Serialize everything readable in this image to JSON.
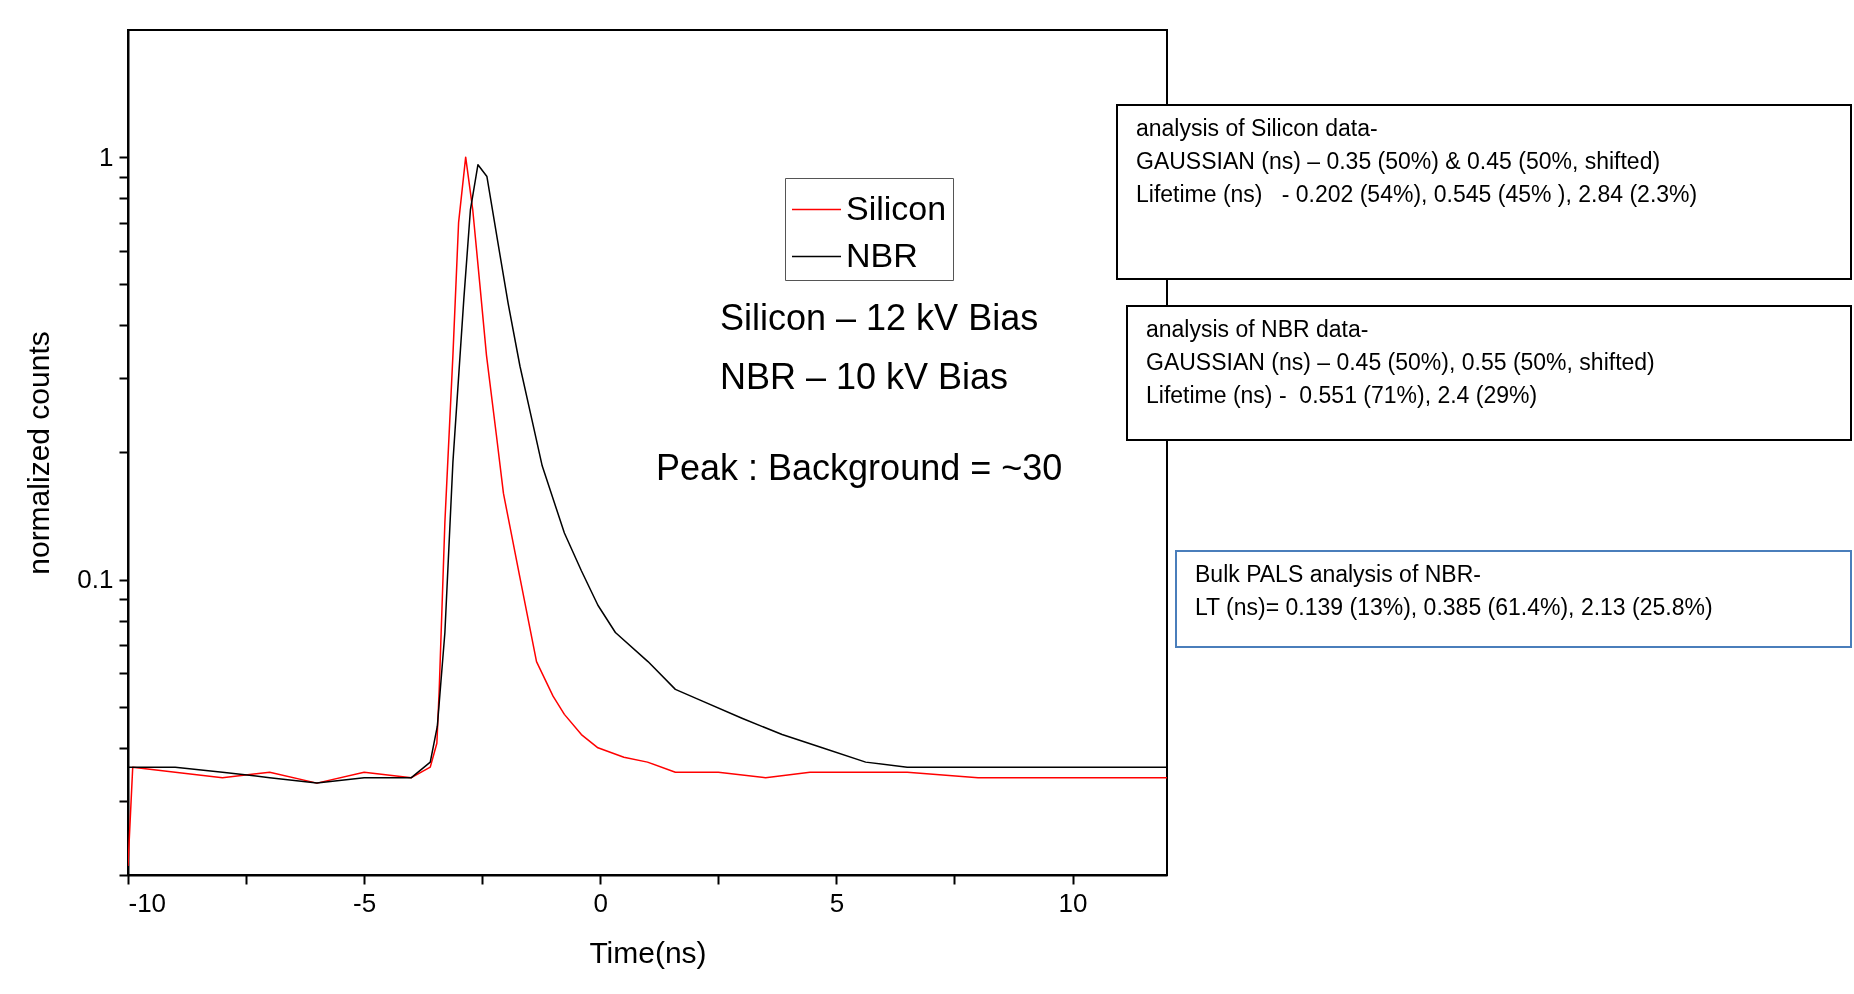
{
  "chart_data": {
    "type": "line",
    "xlabel": "Time(ns)",
    "ylabel": "normalized counts",
    "log": true,
    "legend": "top right",
    "line_style": "solid",
    "marker": "none",
    "xlim": [
      -10,
      12
    ],
    "xticks": [
      -10,
      {
        "value": -7.5,
        "label": null
      },
      -5,
      {
        "value": -2.5,
        "label": null
      },
      0,
      {
        "value": 2.5,
        "label": null
      },
      5,
      {
        "value": 7.5,
        "label": null
      },
      10
    ],
    "ylim": [
      0.02,
      2
    ],
    "yticks": [
      {
        "value": 0.02,
        "label": null
      },
      {
        "value": 0.03,
        "label": null
      },
      {
        "value": 0.04,
        "label": null
      },
      {
        "value": 0.05,
        "label": null
      },
      {
        "value": 0.06,
        "label": null
      },
      {
        "value": 0.07,
        "label": null
      },
      {
        "value": 0.08,
        "label": null
      },
      {
        "value": 0.09,
        "label": null
      },
      0.1,
      {
        "value": 0.2,
        "label": null
      },
      {
        "value": 0.3,
        "label": null
      },
      {
        "value": 0.4,
        "label": null
      },
      {
        "value": 0.5,
        "label": null
      },
      {
        "value": 0.6,
        "label": null
      },
      {
        "value": 0.7,
        "label": null
      },
      {
        "value": 0.8,
        "label": null
      },
      {
        "value": 0.9,
        "label": null
      },
      1
    ],
    "series": [
      {
        "name": "Silicon",
        "color": "#ff0000",
        "x": [
          -10,
          -9.9,
          -9,
          -8,
          -7,
          -6,
          -5,
          -4,
          -3.6,
          -3.46,
          -3.41,
          -3.29,
          -3.12,
          -3,
          -2.85,
          -2.7,
          -2.55,
          -2.41,
          -2.2,
          -2.05,
          -1.7,
          -1.35,
          -1,
          -0.76,
          -0.4,
          -0.05,
          0.5,
          1,
          1.59,
          2.5,
          3.5,
          4.44,
          5.5,
          6.5,
          8,
          9,
          10,
          11,
          12
        ],
        "values": [
          0.021,
          0.036,
          0.035,
          0.034,
          0.035,
          0.033,
          0.035,
          0.034,
          0.036,
          0.041,
          0.055,
          0.137,
          0.34,
          0.7,
          1.0,
          0.75,
          0.5,
          0.34,
          0.22,
          0.16,
          0.101,
          0.064,
          0.053,
          0.048,
          0.043,
          0.04,
          0.038,
          0.037,
          0.035,
          0.035,
          0.034,
          0.035,
          0.035,
          0.035,
          0.034,
          0.034,
          0.034,
          0.034,
          0.034
        ]
      },
      {
        "name": "NBR",
        "color": "#000000",
        "x": [
          -10,
          -9,
          -8,
          -7,
          -6,
          -5,
          -4,
          -3.6,
          -3.45,
          -3.29,
          -3.12,
          -2.89,
          -2.75,
          -2.59,
          -2.4,
          -2.17,
          -1.95,
          -1.7,
          -1.45,
          -1.23,
          -0.76,
          -0.4,
          -0.05,
          0.32,
          1.01,
          1.59,
          2.09,
          3,
          3.85,
          4.7,
          5.62,
          6.5,
          8,
          9,
          10,
          11,
          12
        ],
        "values": [
          0.036,
          0.036,
          0.035,
          0.034,
          0.033,
          0.034,
          0.034,
          0.037,
          0.045,
          0.075,
          0.19,
          0.46,
          0.75,
          0.96,
          0.9,
          0.63,
          0.45,
          0.32,
          0.24,
          0.186,
          0.129,
          0.105,
          0.087,
          0.075,
          0.064,
          0.055,
          0.052,
          0.047,
          0.043,
          0.04,
          0.037,
          0.036,
          0.036,
          0.036,
          0.036,
          0.036,
          0.036
        ]
      }
    ],
    "annotations": [
      "Silicon – 12 kV Bias",
      "NBR – 10 kV Bias",
      "Peak : Background = ~30",
      "analysis of Silicon data-\nGAUSSIAN (ns) – 0.35 (50%) & 0.45 (50%, shifted)\nLifetime (ns)   - 0.202 (54%), 0.545 (45% ), 2.84 (2.3%)",
      "analysis of NBR data-\nGAUSSIAN (ns) – 0.45 (50%), 0.55 (50%, shifted)\nLifetime (ns) -  0.551 (71%), 2.4 (29%)",
      "Bulk PALS analysis of NBR-\nLT (ns)= 0.139 (13%), 0.385 (61.4%), 2.13 (25.8%)"
    ]
  }
}
